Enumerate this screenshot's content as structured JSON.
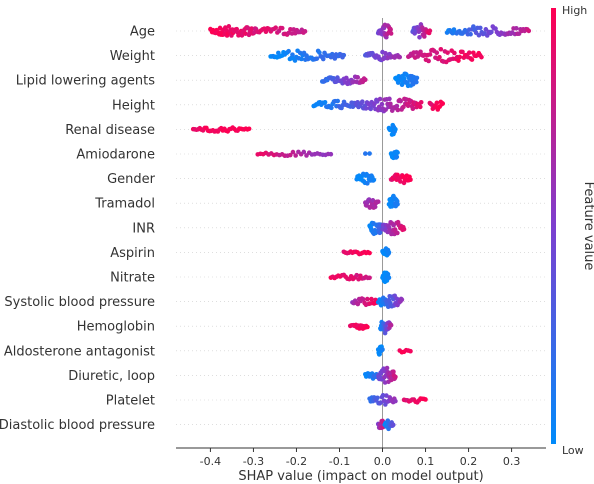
{
  "chart_data": {
    "type": "beeswarm",
    "xlabel": "SHAP value (impact on model output)",
    "xlim": [
      -0.48,
      0.38
    ],
    "xticks": [
      -0.4,
      -0.3,
      -0.2,
      -0.1,
      0.0,
      0.1,
      0.2,
      0.3
    ],
    "xtick_labels": [
      "-0.4",
      "-0.3",
      "-0.2",
      "-0.1",
      "0.0",
      "0.1",
      "0.2",
      "0.3"
    ],
    "colorbar": {
      "label": "Feature value",
      "high": "High",
      "low": "Low",
      "color_high": "#ff0052",
      "color_low": "#008bfb"
    },
    "features": [
      {
        "name": "Age",
        "clusters": [
          {
            "from": -0.4,
            "to": -0.29,
            "n": 55,
            "c0": 1.0,
            "c1": 0.85,
            "w": 1.0
          },
          {
            "from": -0.29,
            "to": -0.18,
            "n": 30,
            "c0": 0.9,
            "c1": 0.75,
            "w": 0.7
          },
          {
            "from": -0.01,
            "to": 0.02,
            "n": 28,
            "c0": 0.45,
            "c1": 0.8,
            "w": 1.3
          },
          {
            "from": 0.07,
            "to": 0.11,
            "n": 26,
            "c0": 0.35,
            "c1": 0.9,
            "w": 1.2
          },
          {
            "from": 0.15,
            "to": 0.34,
            "n": 60,
            "c0": 0.05,
            "c1": 0.8,
            "w": 0.9
          }
        ]
      },
      {
        "name": "Weight",
        "clusters": [
          {
            "from": -0.26,
            "to": -0.09,
            "n": 58,
            "c0": 0.0,
            "c1": 0.25,
            "w": 1.0
          },
          {
            "from": -0.04,
            "to": 0.04,
            "n": 35,
            "c0": 0.35,
            "c1": 0.65,
            "w": 0.8
          },
          {
            "from": 0.06,
            "to": 0.23,
            "n": 55,
            "c0": 0.75,
            "c1": 1.0,
            "w": 1.2
          }
        ]
      },
      {
        "name": "Lipid lowering agents",
        "clusters": [
          {
            "from": -0.14,
            "to": -0.04,
            "n": 35,
            "c0": 0.15,
            "c1": 0.75,
            "w": 0.8
          },
          {
            "from": 0.03,
            "to": 0.08,
            "n": 40,
            "c0": 0.0,
            "c1": 0.15,
            "w": 1.2
          }
        ]
      },
      {
        "name": "Height",
        "clusters": [
          {
            "from": -0.16,
            "to": -0.06,
            "n": 35,
            "c0": 0.0,
            "c1": 0.35,
            "w": 0.7
          },
          {
            "from": -0.06,
            "to": 0.09,
            "n": 70,
            "c0": 0.35,
            "c1": 0.9,
            "w": 1.3
          },
          {
            "from": 0.11,
            "to": 0.14,
            "n": 14,
            "c0": 0.9,
            "c1": 1.0,
            "w": 1.0
          }
        ]
      },
      {
        "name": "Renal disease",
        "clusters": [
          {
            "from": -0.44,
            "to": -0.31,
            "n": 35,
            "c0": 0.95,
            "c1": 1.0,
            "w": 0.4
          },
          {
            "from": 0.015,
            "to": 0.03,
            "n": 18,
            "c0": 0.0,
            "c1": 0.05,
            "w": 1.0
          }
        ]
      },
      {
        "name": "Amiodarone",
        "clusters": [
          {
            "from": -0.29,
            "to": -0.12,
            "n": 28,
            "c0": 0.9,
            "c1": 0.55,
            "w": 0.4
          },
          {
            "from": -0.04,
            "to": -0.03,
            "n": 2,
            "c0": 0.1,
            "c1": 0.1,
            "w": 0.3
          },
          {
            "from": 0.02,
            "to": 0.035,
            "n": 18,
            "c0": 0.0,
            "c1": 0.05,
            "w": 1.0
          }
        ]
      },
      {
        "name": "Gender",
        "clusters": [
          {
            "from": -0.06,
            "to": -0.02,
            "n": 22,
            "c0": 0.0,
            "c1": 0.1,
            "w": 0.9
          },
          {
            "from": 0.02,
            "to": 0.065,
            "n": 22,
            "c0": 0.9,
            "c1": 1.0,
            "w": 0.9
          }
        ]
      },
      {
        "name": "Tramadol",
        "clusters": [
          {
            "from": -0.04,
            "to": -0.01,
            "n": 18,
            "c0": 0.6,
            "c1": 0.7,
            "w": 0.9
          },
          {
            "from": 0.015,
            "to": 0.035,
            "n": 24,
            "c0": 0.0,
            "c1": 0.1,
            "w": 1.4
          }
        ]
      },
      {
        "name": "INR",
        "clusters": [
          {
            "from": -0.03,
            "to": 0.0,
            "n": 28,
            "c0": 0.0,
            "c1": 0.3,
            "w": 1.3
          },
          {
            "from": 0.0,
            "to": 0.05,
            "n": 30,
            "c0": 0.45,
            "c1": 0.9,
            "w": 1.2
          }
        ]
      },
      {
        "name": "Aspirin",
        "clusters": [
          {
            "from": -0.09,
            "to": -0.03,
            "n": 16,
            "c0": 0.9,
            "c1": 1.0,
            "w": 0.4
          },
          {
            "from": 0.0,
            "to": 0.015,
            "n": 14,
            "c0": 0.0,
            "c1": 0.05,
            "w": 1.0
          }
        ]
      },
      {
        "name": "Nitrate",
        "clusters": [
          {
            "from": -0.12,
            "to": -0.03,
            "n": 22,
            "c0": 0.95,
            "c1": 0.8,
            "w": 0.5
          },
          {
            "from": 0.0,
            "to": 0.015,
            "n": 14,
            "c0": 0.0,
            "c1": 0.05,
            "w": 1.0
          }
        ]
      },
      {
        "name": "Systolic blood pressure",
        "clusters": [
          {
            "from": -0.07,
            "to": -0.01,
            "n": 20,
            "c0": 0.6,
            "c1": 1.0,
            "w": 0.6
          },
          {
            "from": -0.01,
            "to": 0.045,
            "n": 34,
            "c0": 0.0,
            "c1": 0.6,
            "w": 1.2
          }
        ]
      },
      {
        "name": "Hemoglobin",
        "clusters": [
          {
            "from": -0.075,
            "to": -0.035,
            "n": 16,
            "c0": 0.9,
            "c1": 1.0,
            "w": 0.6
          },
          {
            "from": -0.005,
            "to": 0.02,
            "n": 26,
            "c0": 0.0,
            "c1": 0.7,
            "w": 1.3
          }
        ]
      },
      {
        "name": "Aldosterone antagonist",
        "clusters": [
          {
            "from": -0.01,
            "to": 0.0,
            "n": 10,
            "c0": 0.0,
            "c1": 0.05,
            "w": 1.0
          },
          {
            "from": 0.04,
            "to": 0.065,
            "n": 6,
            "c0": 0.95,
            "c1": 1.0,
            "w": 0.4
          }
        ]
      },
      {
        "name": "Diuretic, loop",
        "clusters": [
          {
            "from": -0.04,
            "to": -0.01,
            "n": 16,
            "c0": 0.0,
            "c1": 0.2,
            "w": 0.8
          },
          {
            "from": -0.01,
            "to": 0.03,
            "n": 36,
            "c0": 0.4,
            "c1": 0.8,
            "w": 1.4
          }
        ]
      },
      {
        "name": "Platelet",
        "clusters": [
          {
            "from": -0.03,
            "to": 0.03,
            "n": 24,
            "c0": 0.2,
            "c1": 0.6,
            "w": 0.9
          },
          {
            "from": 0.05,
            "to": 0.1,
            "n": 14,
            "c0": 0.85,
            "c1": 1.0,
            "w": 0.5
          }
        ]
      },
      {
        "name": "Diastolic blood pressure",
        "clusters": [
          {
            "from": -0.01,
            "to": 0.005,
            "n": 14,
            "c0": 0.5,
            "c1": 0.9,
            "w": 0.9
          },
          {
            "from": 0.005,
            "to": 0.025,
            "n": 12,
            "c0": 0.0,
            "c1": 0.4,
            "w": 0.8
          }
        ]
      }
    ]
  }
}
